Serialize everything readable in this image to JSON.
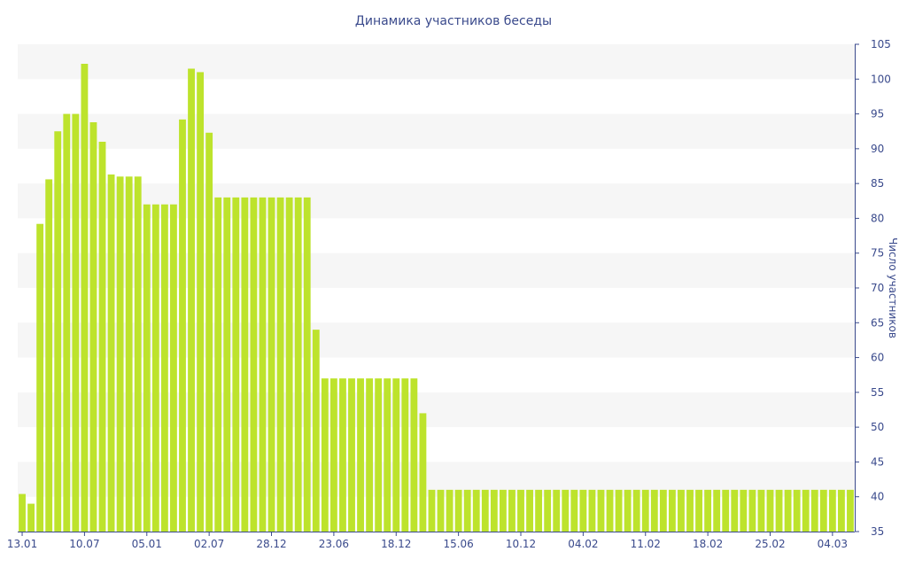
{
  "chart_data": {
    "type": "bar",
    "title": "Динамика участников беседы",
    "xlabel": "",
    "ylabel": "Число участников",
    "ylim": [
      35,
      105
    ],
    "y_ticks": [
      35,
      40,
      45,
      50,
      55,
      60,
      65,
      70,
      75,
      80,
      85,
      90,
      95,
      100,
      105
    ],
    "y_axis_position": "right",
    "grid": "alternating horizontal bands",
    "x_tick_labels": [
      "13.01",
      "10.07",
      "05.01",
      "02.07",
      "28.12",
      "23.06",
      "18.12",
      "15.06",
      "10.12",
      "04.02",
      "11.02",
      "18.02",
      "25.02",
      "04.03"
    ],
    "x_tick_label_indices": [
      0,
      7,
      14,
      21,
      28,
      35,
      42,
      49,
      56,
      63,
      70,
      77,
      84,
      91
    ],
    "values": [
      40.4,
      39,
      79.2,
      85.6,
      92.5,
      95,
      95,
      102.2,
      93.8,
      91,
      86.3,
      86,
      86,
      86,
      82,
      82,
      82,
      82,
      94.2,
      101.5,
      101,
      92.3,
      83,
      83,
      83,
      83,
      83,
      83,
      83,
      83,
      83,
      83,
      83,
      64,
      57,
      57,
      57,
      57,
      57,
      57,
      57,
      57,
      57,
      57,
      57,
      52,
      41,
      41,
      41,
      41,
      41,
      41,
      41,
      41,
      41,
      41,
      41,
      41,
      41,
      41,
      41,
      41,
      41,
      41,
      41,
      41,
      41,
      41,
      41,
      41,
      41,
      41,
      41,
      41,
      41,
      41,
      41,
      41,
      41,
      41,
      41,
      41,
      41,
      41,
      41,
      41,
      41,
      41,
      41,
      41,
      41,
      41,
      41,
      41
    ],
    "colors": {
      "bar": "#bde32c",
      "band": "#f6f6f6",
      "text": "#3a4a8c",
      "axis": "#3a4a8c"
    }
  }
}
